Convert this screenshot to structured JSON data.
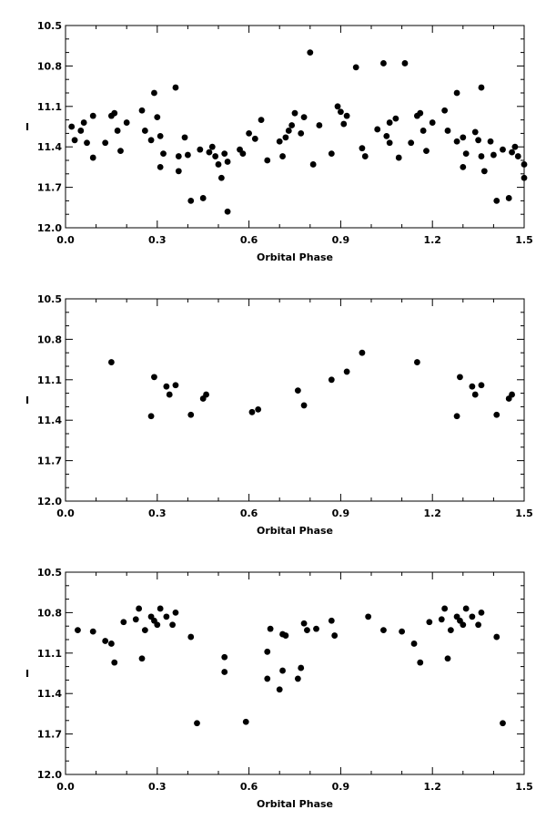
{
  "chart_data": [
    {
      "type": "scatter",
      "xlabel": "Orbital Phase",
      "ylabel": "I",
      "xlim": [
        0.0,
        1.5
      ],
      "ylim": [
        12.0,
        10.5
      ],
      "y_inverted": true,
      "grid": false,
      "xticks": [
        "0.0",
        "0.3",
        "0.6",
        "0.9",
        "1.2",
        "1.5"
      ],
      "yticks": [
        "10.5",
        "10.8",
        "11.1",
        "11.4",
        "11.7",
        "12.0"
      ],
      "points": [
        [
          0.02,
          11.25
        ],
        [
          0.03,
          11.35
        ],
        [
          0.05,
          11.28
        ],
        [
          0.06,
          11.22
        ],
        [
          0.07,
          11.37
        ],
        [
          0.09,
          11.17
        ],
        [
          0.09,
          11.48
        ],
        [
          0.13,
          11.37
        ],
        [
          0.15,
          11.17
        ],
        [
          0.16,
          11.15
        ],
        [
          0.17,
          11.28
        ],
        [
          0.18,
          11.43
        ],
        [
          0.2,
          11.22
        ],
        [
          0.25,
          11.13
        ],
        [
          0.26,
          11.28
        ],
        [
          0.28,
          11.35
        ],
        [
          0.29,
          11.0
        ],
        [
          0.3,
          11.18
        ],
        [
          0.31,
          11.32
        ],
        [
          0.31,
          11.55
        ],
        [
          0.32,
          11.45
        ],
        [
          0.36,
          10.96
        ],
        [
          0.37,
          11.47
        ],
        [
          0.37,
          11.58
        ],
        [
          0.39,
          11.33
        ],
        [
          0.4,
          11.46
        ],
        [
          0.41,
          11.8
        ],
        [
          0.44,
          11.42
        ],
        [
          0.45,
          11.78
        ],
        [
          0.47,
          11.44
        ],
        [
          0.48,
          11.4
        ],
        [
          0.49,
          11.47
        ],
        [
          0.5,
          11.53
        ],
        [
          0.51,
          11.63
        ],
        [
          0.52,
          11.45
        ],
        [
          0.53,
          11.51
        ],
        [
          0.53,
          11.88
        ],
        [
          0.57,
          11.42
        ],
        [
          0.58,
          11.45
        ],
        [
          0.6,
          11.3
        ],
        [
          0.62,
          11.34
        ],
        [
          0.64,
          11.2
        ],
        [
          0.66,
          11.5
        ],
        [
          0.7,
          11.36
        ],
        [
          0.71,
          11.47
        ],
        [
          0.72,
          11.33
        ],
        [
          0.73,
          11.28
        ],
        [
          0.74,
          11.24
        ],
        [
          0.75,
          11.15
        ],
        [
          0.77,
          11.3
        ],
        [
          0.78,
          11.18
        ],
        [
          0.8,
          10.7
        ],
        [
          0.81,
          11.53
        ],
        [
          0.83,
          11.24
        ],
        [
          0.87,
          11.45
        ],
        [
          0.89,
          11.1
        ],
        [
          0.9,
          11.14
        ],
        [
          0.91,
          11.23
        ],
        [
          0.92,
          11.17
        ],
        [
          0.95,
          10.81
        ],
        [
          0.97,
          11.41
        ],
        [
          0.98,
          11.47
        ],
        [
          1.02,
          11.27
        ],
        [
          1.04,
          10.78
        ],
        [
          1.05,
          11.32
        ],
        [
          1.06,
          11.22
        ],
        [
          1.06,
          11.37
        ],
        [
          1.08,
          11.19
        ],
        [
          1.09,
          11.48
        ],
        [
          1.11,
          10.78
        ],
        [
          1.13,
          11.37
        ],
        [
          1.15,
          11.17
        ],
        [
          1.16,
          11.15
        ],
        [
          1.17,
          11.28
        ],
        [
          1.18,
          11.43
        ],
        [
          1.2,
          11.22
        ],
        [
          1.24,
          11.13
        ],
        [
          1.25,
          11.28
        ],
        [
          1.28,
          11.36
        ],
        [
          1.28,
          11.0
        ],
        [
          1.3,
          11.33
        ],
        [
          1.3,
          11.55
        ],
        [
          1.31,
          11.45
        ],
        [
          1.34,
          11.29
        ],
        [
          1.35,
          11.35
        ],
        [
          1.36,
          10.96
        ],
        [
          1.36,
          11.47
        ],
        [
          1.37,
          11.58
        ],
        [
          1.39,
          11.36
        ],
        [
          1.4,
          11.46
        ],
        [
          1.41,
          11.8
        ],
        [
          1.43,
          11.42
        ],
        [
          1.45,
          11.78
        ],
        [
          1.46,
          11.44
        ],
        [
          1.47,
          11.4
        ],
        [
          1.48,
          11.47
        ],
        [
          1.5,
          11.53
        ],
        [
          1.51,
          11.63
        ]
      ]
    },
    {
      "type": "scatter",
      "xlabel": "Orbital Phase",
      "ylabel": "I",
      "xlim": [
        0.0,
        1.5
      ],
      "ylim": [
        12.0,
        10.5
      ],
      "y_inverted": true,
      "grid": false,
      "xticks": [
        "0.0",
        "0.3",
        "0.6",
        "0.9",
        "1.2",
        "1.5"
      ],
      "yticks": [
        "10.5",
        "10.8",
        "11.1",
        "11.4",
        "11.7",
        "12.0"
      ],
      "points": [
        [
          0.15,
          10.97
        ],
        [
          0.28,
          11.37
        ],
        [
          0.29,
          11.08
        ],
        [
          0.33,
          11.15
        ],
        [
          0.34,
          11.21
        ],
        [
          0.36,
          11.14
        ],
        [
          0.41,
          11.36
        ],
        [
          0.45,
          11.24
        ],
        [
          0.46,
          11.21
        ],
        [
          0.61,
          11.34
        ],
        [
          0.63,
          11.32
        ],
        [
          0.76,
          11.18
        ],
        [
          0.78,
          11.29
        ],
        [
          0.87,
          11.1
        ],
        [
          0.92,
          11.04
        ],
        [
          0.97,
          10.9
        ],
        [
          1.15,
          10.97
        ],
        [
          1.28,
          11.37
        ],
        [
          1.29,
          11.08
        ],
        [
          1.33,
          11.15
        ],
        [
          1.34,
          11.21
        ],
        [
          1.36,
          11.14
        ],
        [
          1.41,
          11.36
        ],
        [
          1.45,
          11.24
        ],
        [
          1.46,
          11.21
        ]
      ]
    },
    {
      "type": "scatter",
      "xlabel": "Orbital Phase",
      "ylabel": "I",
      "xlim": [
        0.0,
        1.5
      ],
      "ylim": [
        12.0,
        10.5
      ],
      "y_inverted": true,
      "grid": false,
      "xticks": [
        "0.0",
        "0.3",
        "0.6",
        "0.9",
        "1.2",
        "1.5"
      ],
      "yticks": [
        "10.5",
        "10.8",
        "11.1",
        "11.4",
        "11.7",
        "12.0"
      ],
      "points": [
        [
          0.04,
          10.93
        ],
        [
          0.09,
          10.94
        ],
        [
          0.13,
          11.01
        ],
        [
          0.15,
          11.03
        ],
        [
          0.16,
          11.17
        ],
        [
          0.19,
          10.87
        ],
        [
          0.23,
          10.85
        ],
        [
          0.24,
          10.77
        ],
        [
          0.25,
          11.14
        ],
        [
          0.26,
          10.93
        ],
        [
          0.28,
          10.83
        ],
        [
          0.29,
          10.86
        ],
        [
          0.3,
          10.89
        ],
        [
          0.31,
          10.77
        ],
        [
          0.33,
          10.83
        ],
        [
          0.35,
          10.89
        ],
        [
          0.36,
          10.8
        ],
        [
          0.41,
          10.98
        ],
        [
          0.43,
          11.62
        ],
        [
          0.52,
          11.13
        ],
        [
          0.52,
          11.24
        ],
        [
          0.59,
          11.61
        ],
        [
          0.66,
          11.29
        ],
        [
          0.66,
          11.09
        ],
        [
          0.67,
          10.92
        ],
        [
          0.7,
          11.37
        ],
        [
          0.71,
          11.23
        ],
        [
          0.71,
          10.96
        ],
        [
          0.72,
          10.97
        ],
        [
          0.76,
          11.29
        ],
        [
          0.77,
          11.21
        ],
        [
          0.78,
          10.88
        ],
        [
          0.79,
          10.93
        ],
        [
          0.82,
          10.92
        ],
        [
          0.87,
          10.86
        ],
        [
          0.88,
          10.97
        ],
        [
          0.99,
          10.83
        ],
        [
          1.04,
          10.93
        ],
        [
          1.1,
          10.94
        ],
        [
          1.14,
          11.03
        ],
        [
          1.16,
          11.17
        ],
        [
          1.19,
          10.87
        ],
        [
          1.23,
          10.85
        ],
        [
          1.24,
          10.77
        ],
        [
          1.25,
          11.14
        ],
        [
          1.26,
          10.93
        ],
        [
          1.28,
          10.83
        ],
        [
          1.29,
          10.86
        ],
        [
          1.3,
          10.89
        ],
        [
          1.31,
          10.77
        ],
        [
          1.33,
          10.83
        ],
        [
          1.35,
          10.89
        ],
        [
          1.36,
          10.8
        ],
        [
          1.41,
          10.98
        ],
        [
          1.43,
          11.62
        ]
      ]
    }
  ]
}
